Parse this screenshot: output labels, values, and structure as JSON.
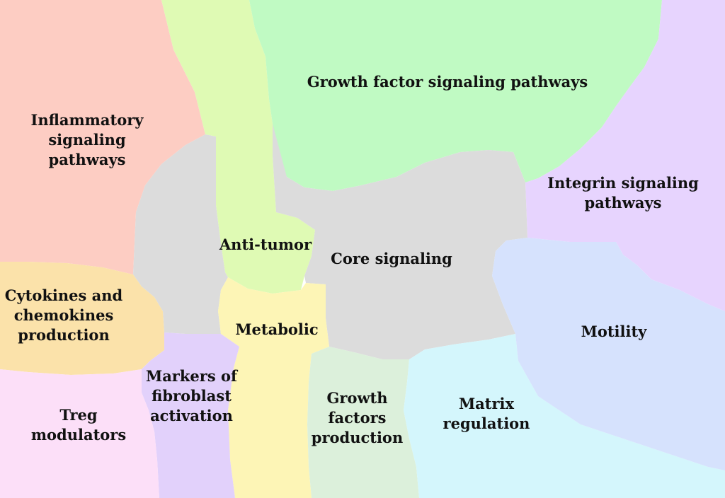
{
  "regions": {
    "inflammatory": {
      "lines": [
        "Inflammatory",
        "signaling",
        "pathways"
      ],
      "color": "#fdcdc3"
    },
    "growth_factor_signaling": {
      "lines": [
        "Growth factor signaling pathways"
      ],
      "color": "#c0fac3"
    },
    "integrin": {
      "lines": [
        "Integrin signaling",
        "pathways"
      ],
      "color": "#e7d4fe"
    },
    "anti_tumor": {
      "lines": [
        "Anti-tumor"
      ],
      "color": "#dffab4"
    },
    "core_signaling": {
      "lines": [
        "Core signaling"
      ],
      "color": "#dcdcdc"
    },
    "cytokines": {
      "lines": [
        "Cytokines and",
        "chemokines",
        "production"
      ],
      "color": "#fbe2aa"
    },
    "metabolic": {
      "lines": [
        "Metabolic"
      ],
      "color": "#fdf5b6"
    },
    "motility": {
      "lines": [
        "Motility"
      ],
      "color": "#d6e2fd"
    },
    "fibroblast": {
      "lines": [
        "Markers of",
        "fibroblast",
        "activation"
      ],
      "color": "#e2d1fb"
    },
    "growth_factors_production": {
      "lines": [
        "Growth",
        "factors",
        "production"
      ],
      "color": "#dcf0db"
    },
    "matrix": {
      "lines": [
        "Matrix",
        "regulation"
      ],
      "color": "#d4f6fc"
    },
    "treg": {
      "lines": [
        "Treg",
        "modulators"
      ],
      "color": "#fcdff8"
    }
  }
}
